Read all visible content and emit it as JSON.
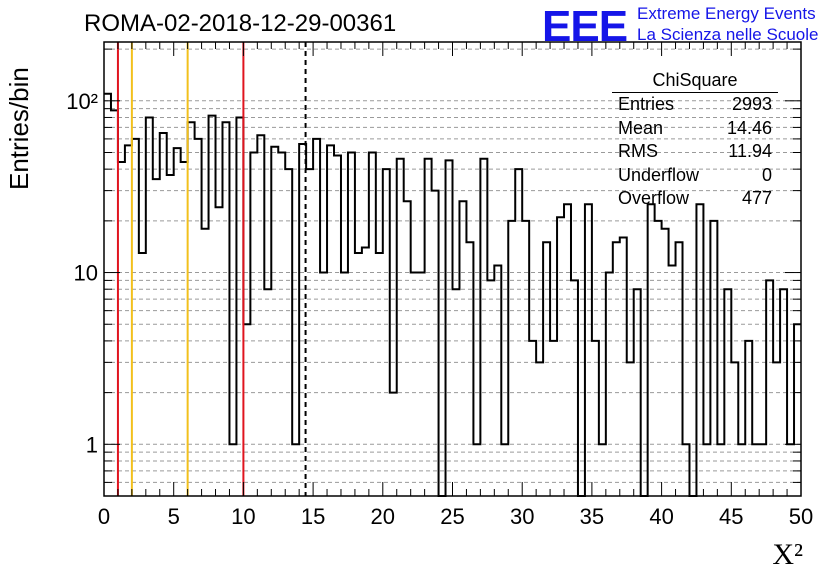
{
  "header": {
    "title": "ROMA-02-2018-12-29-00361",
    "logo_text": "EEE",
    "logo_line1": "Extreme Energy Events",
    "logo_line2": "La Scienza nelle Scuole",
    "logo_color": "#1515e8"
  },
  "stats_box": {
    "title": "ChiSquare",
    "rows": [
      {
        "label": "Entries",
        "value": "2993"
      },
      {
        "label": "Mean",
        "value": "14.46"
      },
      {
        "label": "RMS",
        "value": "11.94"
      },
      {
        "label": "Underflow",
        "value": "0"
      },
      {
        "label": "Overflow",
        "value": "477"
      }
    ]
  },
  "chart_data": {
    "type": "bar",
    "histogram": true,
    "ylabel": "Entries/bin",
    "xlabel": "X²",
    "xlim": [
      0,
      50
    ],
    "ylim": [
      0.5,
      220
    ],
    "yscale": "log",
    "bin_width": 0.5,
    "grid": "horizontal-dashed",
    "xticks": [
      0,
      5,
      10,
      15,
      20,
      25,
      30,
      35,
      40,
      45,
      50
    ],
    "yticks": [
      {
        "value": 1,
        "label": "1"
      },
      {
        "value": 10,
        "label": "10"
      },
      {
        "value": 100,
        "label": "10²"
      }
    ],
    "values": [
      110,
      88,
      44,
      55,
      60,
      13,
      80,
      35,
      65,
      37,
      53,
      44,
      75,
      60,
      18,
      82,
      24,
      75,
      1,
      80,
      5,
      50,
      63,
      8,
      54,
      50,
      40,
      1,
      56,
      40,
      60,
      10,
      55,
      48,
      10,
      50,
      13,
      14,
      50,
      13,
      40,
      2,
      46,
      26,
      10,
      10,
      46,
      30,
      0.3,
      45,
      8,
      26,
      15,
      1,
      46,
      9,
      11,
      1,
      20,
      40,
      20,
      4,
      3,
      15,
      4,
      21,
      25,
      9,
      0.3,
      25,
      4,
      1,
      10,
      15,
      16,
      3,
      8,
      0.3,
      25,
      20,
      18,
      11,
      15,
      1,
      0.3,
      25,
      1,
      20,
      1,
      8,
      3,
      1,
      4,
      1,
      1,
      9,
      3,
      8,
      1,
      5
    ],
    "vlines": [
      {
        "x": 1,
        "color": "#e0141e",
        "style": "solid"
      },
      {
        "x": 2,
        "color": "#f2c01c",
        "style": "solid"
      },
      {
        "x": 6,
        "color": "#f2c01c",
        "style": "solid"
      },
      {
        "x": 10,
        "color": "#e0141e",
        "style": "solid"
      },
      {
        "x": 14.46,
        "color": "#000000",
        "style": "dashed"
      }
    ]
  }
}
